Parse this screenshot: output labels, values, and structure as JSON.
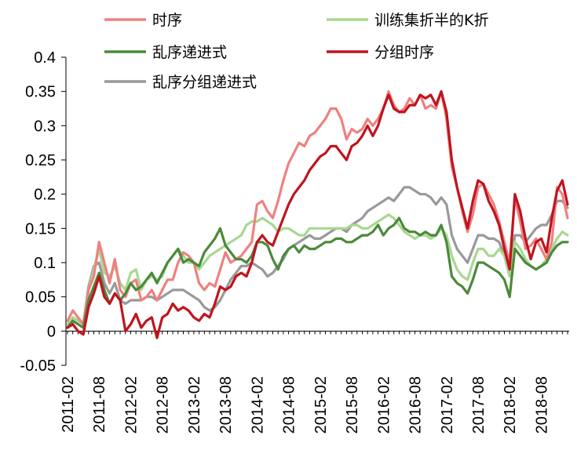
{
  "chart_data": {
    "type": "line",
    "title": "",
    "xlabel": "",
    "ylabel": "",
    "ylim": [
      -0.05,
      0.4
    ],
    "yticks": [
      -0.05,
      0,
      0.05,
      0.1,
      0.15,
      0.2,
      0.25,
      0.3,
      0.35,
      0.4
    ],
    "ytick_labels": [
      "-0.05",
      "0",
      "0.05",
      "0.1",
      "0.15",
      "0.2",
      "0.25",
      "0.3",
      "0.35",
      "0.4"
    ],
    "xtick_labels": [
      "2011-02",
      "2011-08",
      "2012-02",
      "2012-08",
      "2013-02",
      "2013-08",
      "2014-02",
      "2014-08",
      "2015-02",
      "2015-08",
      "2016-02",
      "2016-08",
      "2017-02",
      "2017-08",
      "2018-02",
      "2018-08"
    ],
    "grid": false,
    "legend_position": "top",
    "x": [
      "2011-02",
      "2011-03",
      "2011-04",
      "2011-05",
      "2011-06",
      "2011-07",
      "2011-08",
      "2011-09",
      "2011-10",
      "2011-11",
      "2011-12",
      "2012-01",
      "2012-02",
      "2012-03",
      "2012-04",
      "2012-05",
      "2012-06",
      "2012-07",
      "2012-08",
      "2012-09",
      "2012-10",
      "2012-11",
      "2012-12",
      "2013-01",
      "2013-02",
      "2013-03",
      "2013-04",
      "2013-05",
      "2013-06",
      "2013-07",
      "2013-08",
      "2013-09",
      "2013-10",
      "2013-11",
      "2013-12",
      "2014-01",
      "2014-02",
      "2014-03",
      "2014-04",
      "2014-05",
      "2014-06",
      "2014-07",
      "2014-08",
      "2014-09",
      "2014-10",
      "2014-11",
      "2014-12",
      "2015-01",
      "2015-02",
      "2015-03",
      "2015-04",
      "2015-05",
      "2015-06",
      "2015-07",
      "2015-08",
      "2015-09",
      "2015-10",
      "2015-11",
      "2015-12",
      "2016-01",
      "2016-02",
      "2016-03",
      "2016-04",
      "2016-05",
      "2016-06",
      "2016-07",
      "2016-08",
      "2016-09",
      "2016-10",
      "2016-11",
      "2016-12",
      "2017-01",
      "2017-02",
      "2017-03",
      "2017-04",
      "2017-05",
      "2017-06",
      "2017-07",
      "2017-08",
      "2017-09",
      "2017-10",
      "2017-11",
      "2017-12",
      "2018-01",
      "2018-02",
      "2018-03",
      "2018-04",
      "2018-05",
      "2018-06",
      "2018-07",
      "2018-08",
      "2018-09",
      "2018-10",
      "2018-11",
      "2018-12",
      "2019-01"
    ],
    "series": [
      {
        "name": "时序",
        "color": "#f08080",
        "values": [
          0.015,
          0.03,
          0.02,
          0.01,
          0.06,
          0.08,
          0.13,
          0.1,
          0.07,
          0.105,
          0.06,
          0.05,
          0.07,
          0.075,
          0.045,
          0.05,
          0.06,
          0.045,
          0.06,
          0.075,
          0.075,
          0.1,
          0.115,
          0.11,
          0.1,
          0.07,
          0.06,
          0.07,
          0.065,
          0.09,
          0.115,
          0.1,
          0.105,
          0.11,
          0.12,
          0.13,
          0.185,
          0.19,
          0.175,
          0.165,
          0.19,
          0.22,
          0.245,
          0.26,
          0.275,
          0.27,
          0.285,
          0.29,
          0.3,
          0.31,
          0.325,
          0.325,
          0.31,
          0.28,
          0.295,
          0.29,
          0.295,
          0.31,
          0.3,
          0.31,
          0.325,
          0.35,
          0.33,
          0.32,
          0.325,
          0.34,
          0.33,
          0.345,
          0.325,
          0.33,
          0.325,
          0.35,
          0.31,
          0.24,
          0.21,
          0.175,
          0.145,
          0.17,
          0.21,
          0.215,
          0.2,
          0.185,
          0.16,
          0.13,
          0.1,
          0.195,
          0.16,
          0.12,
          0.125,
          0.135,
          0.12,
          0.105,
          0.13,
          0.21,
          0.2,
          0.165
        ]
      },
      {
        "name": "训练集折半的K折",
        "color": "#a8d890",
        "values": [
          0.01,
          0.02,
          0.015,
          0.01,
          0.06,
          0.09,
          0.12,
          0.085,
          0.08,
          0.095,
          0.07,
          0.06,
          0.085,
          0.09,
          0.06,
          0.075,
          0.08,
          0.075,
          0.08,
          0.1,
          0.11,
          0.12,
          0.11,
          0.1,
          0.1,
          0.09,
          0.1,
          0.11,
          0.115,
          0.12,
          0.125,
          0.13,
          0.135,
          0.14,
          0.155,
          0.16,
          0.16,
          0.165,
          0.16,
          0.155,
          0.145,
          0.15,
          0.15,
          0.145,
          0.14,
          0.14,
          0.15,
          0.15,
          0.15,
          0.15,
          0.15,
          0.15,
          0.15,
          0.15,
          0.155,
          0.155,
          0.15,
          0.15,
          0.155,
          0.16,
          0.165,
          0.17,
          0.165,
          0.155,
          0.145,
          0.14,
          0.135,
          0.14,
          0.14,
          0.135,
          0.14,
          0.15,
          0.14,
          0.11,
          0.09,
          0.08,
          0.075,
          0.1,
          0.12,
          0.12,
          0.11,
          0.11,
          0.12,
          0.11,
          0.08,
          0.13,
          0.12,
          0.105,
          0.095,
          0.09,
          0.095,
          0.105,
          0.12,
          0.135,
          0.145,
          0.14
        ]
      },
      {
        "name": "乱序递进式",
        "color": "#4a8a3a",
        "values": [
          0.005,
          0.015,
          0.01,
          0.005,
          0.045,
          0.065,
          0.085,
          0.06,
          0.04,
          0.055,
          0.045,
          0.055,
          0.07,
          0.06,
          0.065,
          0.075,
          0.085,
          0.07,
          0.085,
          0.1,
          0.11,
          0.12,
          0.1,
          0.105,
          0.1,
          0.095,
          0.115,
          0.125,
          0.135,
          0.15,
          0.125,
          0.115,
          0.105,
          0.105,
          0.1,
          0.11,
          0.13,
          0.13,
          0.125,
          0.105,
          0.09,
          0.11,
          0.12,
          0.125,
          0.115,
          0.125,
          0.12,
          0.12,
          0.125,
          0.13,
          0.13,
          0.135,
          0.135,
          0.13,
          0.13,
          0.135,
          0.14,
          0.14,
          0.145,
          0.155,
          0.14,
          0.15,
          0.155,
          0.165,
          0.15,
          0.145,
          0.145,
          0.14,
          0.145,
          0.14,
          0.14,
          0.155,
          0.13,
          0.08,
          0.07,
          0.065,
          0.055,
          0.075,
          0.1,
          0.1,
          0.095,
          0.09,
          0.085,
          0.075,
          0.05,
          0.12,
          0.11,
          0.1,
          0.095,
          0.09,
          0.095,
          0.1,
          0.115,
          0.125,
          0.13,
          0.13
        ]
      },
      {
        "name": "分组时序",
        "color": "#c0141e",
        "values": [
          0.005,
          0.01,
          0.0,
          -0.005,
          0.035,
          0.055,
          0.08,
          0.05,
          0.04,
          0.055,
          0.045,
          0.0,
          0.01,
          0.025,
          0.005,
          0.015,
          0.02,
          -0.01,
          0.02,
          0.025,
          0.04,
          0.03,
          0.035,
          0.03,
          0.02,
          0.015,
          0.025,
          0.02,
          0.04,
          0.065,
          0.06,
          0.065,
          0.08,
          0.085,
          0.08,
          0.1,
          0.13,
          0.14,
          0.13,
          0.125,
          0.145,
          0.165,
          0.185,
          0.2,
          0.21,
          0.22,
          0.235,
          0.245,
          0.255,
          0.26,
          0.27,
          0.27,
          0.26,
          0.25,
          0.27,
          0.275,
          0.285,
          0.3,
          0.285,
          0.3,
          0.325,
          0.345,
          0.325,
          0.32,
          0.32,
          0.33,
          0.33,
          0.345,
          0.34,
          0.345,
          0.33,
          0.35,
          0.32,
          0.25,
          0.21,
          0.18,
          0.15,
          0.19,
          0.22,
          0.215,
          0.19,
          0.175,
          0.155,
          0.12,
          0.09,
          0.2,
          0.175,
          0.135,
          0.105,
          0.13,
          0.135,
          0.115,
          0.165,
          0.205,
          0.22,
          0.185
        ]
      },
      {
        "name": "乱序分组递进式",
        "color": "#999999",
        "values": [
          0.005,
          0.02,
          0.015,
          0.01,
          0.065,
          0.095,
          0.1,
          0.07,
          0.055,
          0.07,
          0.045,
          0.04,
          0.045,
          0.045,
          0.045,
          0.05,
          0.05,
          0.045,
          0.05,
          0.055,
          0.06,
          0.06,
          0.06,
          0.055,
          0.05,
          0.045,
          0.035,
          0.03,
          0.035,
          0.045,
          0.06,
          0.075,
          0.085,
          0.095,
          0.095,
          0.1,
          0.095,
          0.09,
          0.08,
          0.085,
          0.095,
          0.105,
          0.12,
          0.125,
          0.13,
          0.135,
          0.14,
          0.135,
          0.135,
          0.14,
          0.145,
          0.15,
          0.15,
          0.145,
          0.155,
          0.16,
          0.165,
          0.175,
          0.18,
          0.185,
          0.19,
          0.195,
          0.19,
          0.2,
          0.21,
          0.21,
          0.205,
          0.2,
          0.2,
          0.195,
          0.185,
          0.195,
          0.185,
          0.14,
          0.12,
          0.11,
          0.1,
          0.12,
          0.14,
          0.14,
          0.135,
          0.135,
          0.13,
          0.11,
          0.08,
          0.14,
          0.14,
          0.13,
          0.14,
          0.15,
          0.155,
          0.155,
          0.17,
          0.19,
          0.19,
          0.18
        ]
      }
    ]
  }
}
